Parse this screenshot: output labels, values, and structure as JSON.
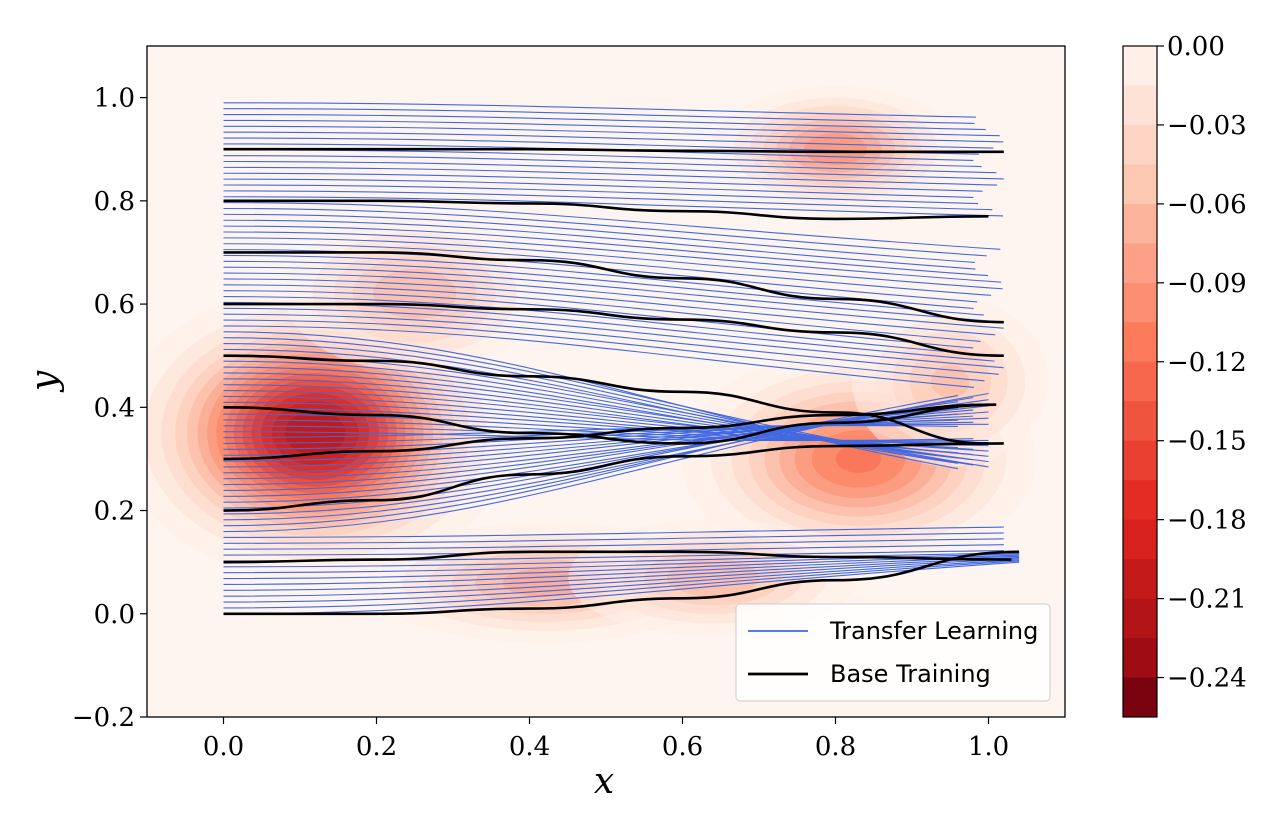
{
  "chart_data": {
    "type": "contour_with_trajectories",
    "xlabel": "x",
    "ylabel": "y",
    "xlim": [
      -0.1,
      1.1
    ],
    "ylim": [
      -0.2,
      1.1
    ],
    "x_ticks": [
      0.0,
      0.2,
      0.4,
      0.6,
      0.8,
      1.0
    ],
    "y_ticks": [
      -0.2,
      0.0,
      0.2,
      0.4,
      0.6,
      0.8,
      1.0
    ],
    "x_tick_labels": [
      "0.0",
      "0.2",
      "0.4",
      "0.6",
      "0.8",
      "1.0"
    ],
    "y_tick_labels": [
      "−0.2",
      "0.0",
      "0.2",
      "0.4",
      "0.6",
      "0.8",
      "1.0"
    ],
    "colorbar": {
      "vmin": -0.255,
      "vmax": 0.0,
      "levels": 17,
      "tick_values": [
        0.0,
        -0.03,
        -0.06,
        -0.09,
        -0.12,
        -0.15,
        -0.18,
        -0.21,
        -0.24
      ],
      "tick_labels": [
        "0.00",
        "−0.03",
        "−0.06",
        "−0.09",
        "−0.12",
        "−0.15",
        "−0.18",
        "−0.21",
        "−0.24"
      ],
      "colormap": "Reds_r"
    },
    "field_sources": [
      {
        "cx": 0.12,
        "cy": 0.35,
        "amp": -0.24,
        "sx": 0.11,
        "sy": 0.12
      },
      {
        "cx": 0.25,
        "cy": 0.62,
        "amp": -0.09,
        "sx": 0.09,
        "sy": 0.08
      },
      {
        "cx": 0.8,
        "cy": 0.9,
        "amp": -0.12,
        "sx": 0.08,
        "sy": 0.06
      },
      {
        "cx": 0.83,
        "cy": 0.3,
        "amp": -0.14,
        "sx": 0.11,
        "sy": 0.1
      },
      {
        "cx": 0.95,
        "cy": 0.45,
        "amp": -0.08,
        "sx": 0.07,
        "sy": 0.09
      },
      {
        "cx": 0.42,
        "cy": 0.06,
        "amp": -0.1,
        "sx": 0.12,
        "sy": 0.06
      },
      {
        "cx": 0.64,
        "cy": 0.07,
        "amp": -0.09,
        "sx": 0.1,
        "sy": 0.06
      }
    ],
    "series": [
      {
        "name": "Transfer Learning",
        "color": "#4169e1",
        "n_lines": 88,
        "y_start_range": [
          0.0,
          0.99
        ]
      },
      {
        "name": "Base Training",
        "color": "#000000",
        "lines": [
          {
            "x": [
              0.0,
              0.2,
              0.4,
              0.6,
              0.8,
              1.02
            ],
            "y": [
              0.9,
              0.9,
              0.9,
              0.897,
              0.895,
              0.895
            ]
          },
          {
            "x": [
              0.0,
              0.2,
              0.4,
              0.6,
              0.8,
              1.0
            ],
            "y": [
              0.8,
              0.8,
              0.795,
              0.78,
              0.765,
              0.77
            ]
          },
          {
            "x": [
              0.0,
              0.2,
              0.4,
              0.6,
              0.8,
              1.02
            ],
            "y": [
              0.7,
              0.7,
              0.685,
              0.65,
              0.61,
              0.565
            ]
          },
          {
            "x": [
              0.0,
              0.2,
              0.4,
              0.6,
              0.8,
              1.02
            ],
            "y": [
              0.6,
              0.6,
              0.59,
              0.57,
              0.545,
              0.5
            ]
          },
          {
            "x": [
              0.0,
              0.2,
              0.4,
              0.6,
              0.8,
              1.0
            ],
            "y": [
              0.5,
              0.49,
              0.46,
              0.43,
              0.39,
              0.33
            ]
          },
          {
            "x": [
              0.0,
              0.2,
              0.4,
              0.6,
              0.8,
              1.01
            ],
            "y": [
              0.4,
              0.385,
              0.35,
              0.33,
              0.37,
              0.405
            ]
          },
          {
            "x": [
              0.0,
              0.2,
              0.4,
              0.6,
              0.8,
              1.01
            ],
            "y": [
              0.3,
              0.315,
              0.34,
              0.36,
              0.385,
              0.405
            ]
          },
          {
            "x": [
              0.0,
              0.2,
              0.4,
              0.6,
              0.8,
              1.02
            ],
            "y": [
              0.2,
              0.22,
              0.27,
              0.305,
              0.325,
              0.33
            ]
          },
          {
            "x": [
              0.0,
              0.2,
              0.4,
              0.6,
              0.8,
              1.03
            ],
            "y": [
              0.1,
              0.105,
              0.12,
              0.12,
              0.11,
              0.105
            ]
          },
          {
            "x": [
              0.0,
              0.2,
              0.4,
              0.6,
              0.8,
              1.04
            ],
            "y": [
              0.0,
              0.0,
              0.01,
              0.03,
              0.065,
              0.12
            ]
          }
        ]
      }
    ],
    "legend": {
      "position": "lower-right",
      "entries": [
        "Transfer Learning",
        "Base Training"
      ]
    }
  }
}
